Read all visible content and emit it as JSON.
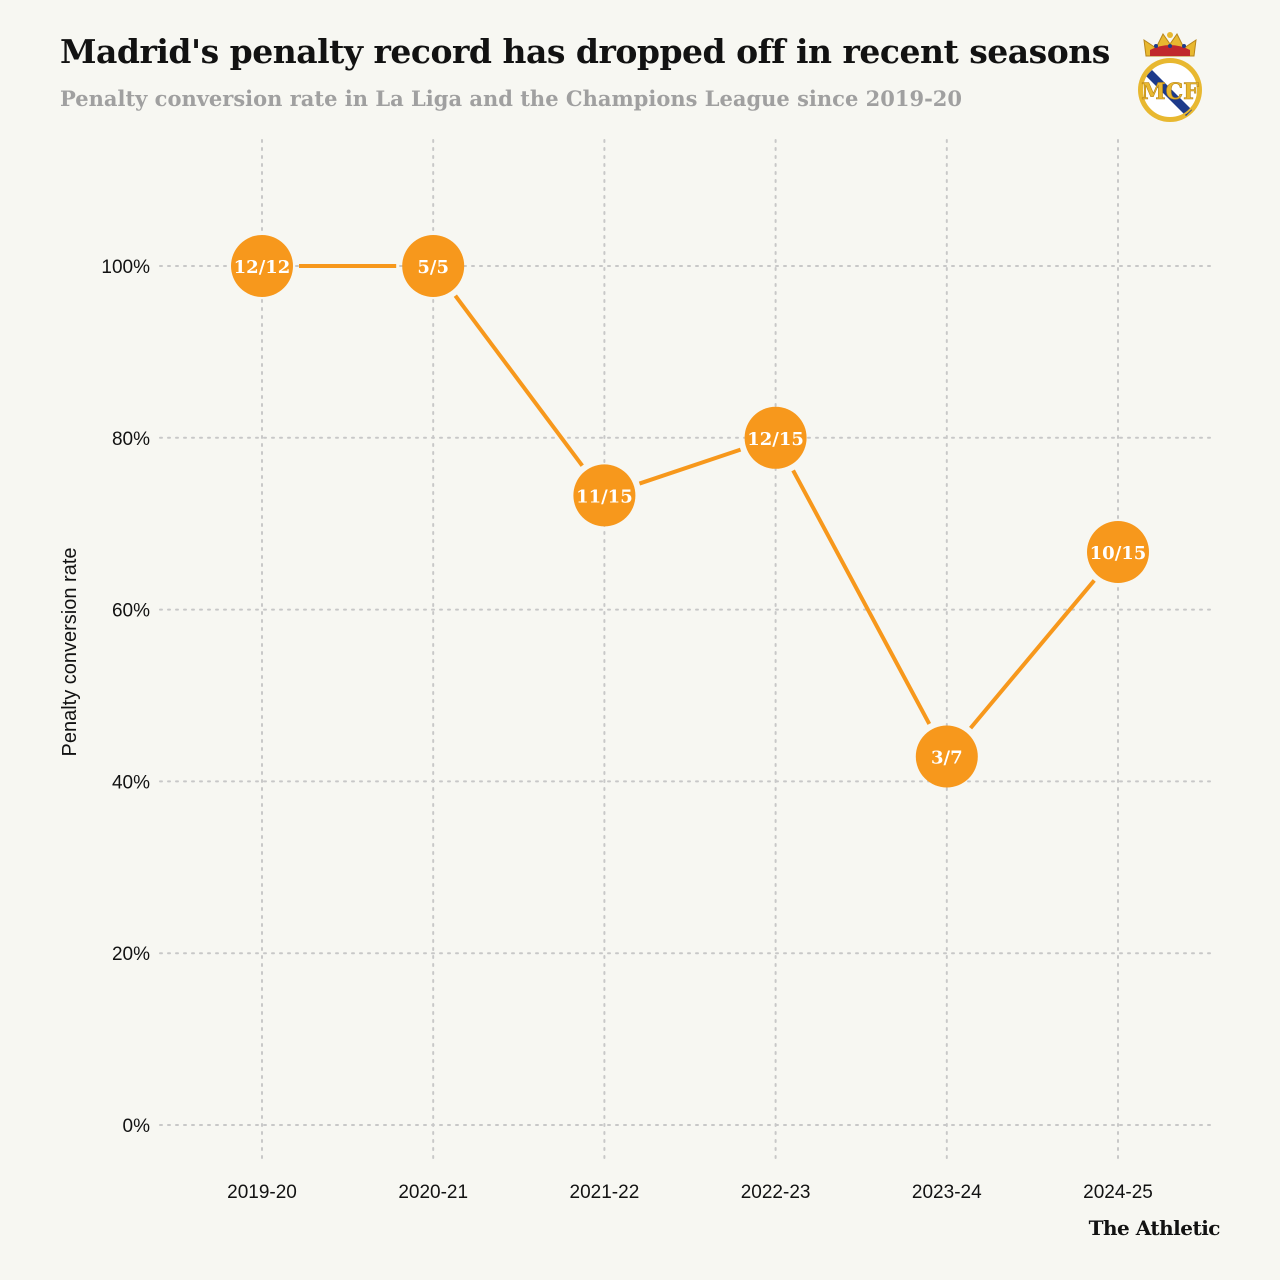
{
  "header": {
    "title": "Madrid's penalty record has dropped off in recent seasons",
    "subtitle": "Penalty conversion rate in La Liga and the Champions League since 2019-20"
  },
  "footer": {
    "brand": "The Athletic"
  },
  "logo": {
    "icon": "real-madrid-crest-icon",
    "text": "MCF"
  },
  "colors": {
    "accent": "#f7981c",
    "background": "#f7f7f2",
    "grid": "#c8c8c8",
    "text": "#121212",
    "subtitle": "#a0a0a0"
  },
  "chart_data": {
    "type": "line",
    "title": "Madrid's penalty record has dropped off in recent seasons",
    "subtitle": "Penalty conversion rate in La Liga and the Champions League since 2019-20",
    "xlabel": "",
    "ylabel": "Penalty conversion rate",
    "categories": [
      "2019-20",
      "2020-21",
      "2021-22",
      "2022-23",
      "2023-24",
      "2024-25"
    ],
    "values": [
      100,
      100,
      73.3,
      80,
      42.9,
      66.7
    ],
    "point_labels": [
      "12/12",
      "5/5",
      "11/15",
      "12/15",
      "3/7",
      "10/15"
    ],
    "ylim": [
      0,
      110
    ],
    "yticks": [
      0,
      20,
      40,
      60,
      80,
      100
    ],
    "ytick_labels": [
      "0%",
      "20%",
      "40%",
      "60%",
      "80%",
      "100%"
    ],
    "grid": true
  }
}
